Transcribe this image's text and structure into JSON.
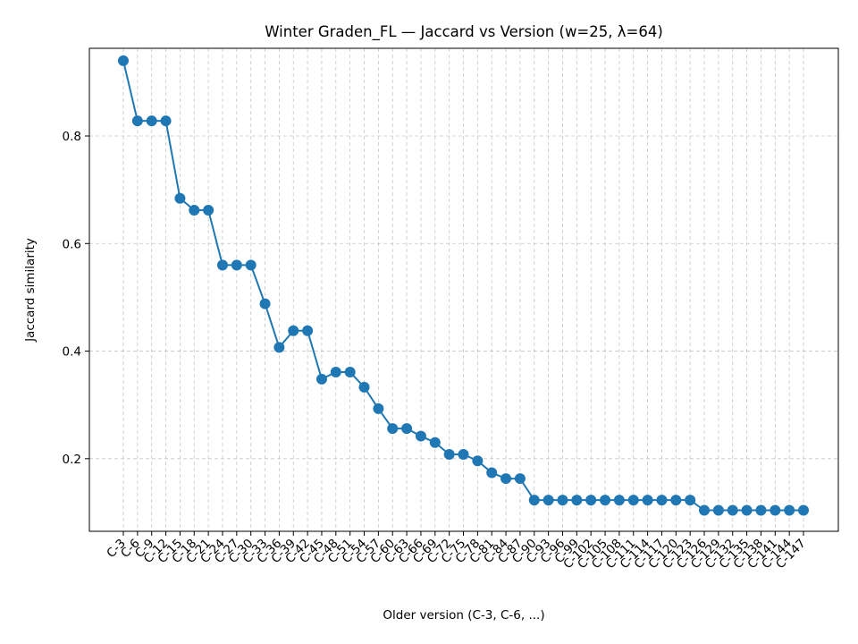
{
  "chart_data": {
    "type": "line",
    "title": "Winter Graden_FL — Jaccard vs Version (w=25, λ=64)",
    "xlabel": "Older version (C-3, C-6, ...)",
    "ylabel": "Jaccard similarity",
    "ylim": [
      0.065,
      0.963
    ],
    "yticks": [
      "0.2",
      "0.4",
      "0.6",
      "0.8"
    ],
    "grid": true,
    "categories": [
      "C-3",
      "C-6",
      "C-9",
      "C-12",
      "C-15",
      "C-18",
      "C-21",
      "C-24",
      "C-27",
      "C-30",
      "C-33",
      "C-36",
      "C-39",
      "C-42",
      "C-45",
      "C-48",
      "C-51",
      "C-54",
      "C-57",
      "C-60",
      "C-63",
      "C-66",
      "C-69",
      "C-72",
      "C-75",
      "C-78",
      "C-81",
      "C-84",
      "C-87",
      "C-90",
      "C-93",
      "C-96",
      "C-99",
      "C-102",
      "C-105",
      "C-108",
      "C-111",
      "C-114",
      "C-117",
      "C-120",
      "C-123",
      "C-126",
      "C-129",
      "C-132",
      "C-135",
      "C-138",
      "C-141",
      "C-144",
      "C-147"
    ],
    "series": [
      {
        "color": "#1f77b4",
        "values": [
          0.94,
          0.828,
          0.828,
          0.828,
          0.684,
          0.662,
          0.662,
          0.56,
          0.56,
          0.56,
          0.488,
          0.407,
          0.438,
          0.438,
          0.348,
          0.361,
          0.361,
          0.333,
          0.293,
          0.256,
          0.256,
          0.242,
          0.23,
          0.208,
          0.208,
          0.196,
          0.174,
          0.163,
          0.163,
          0.123,
          0.123,
          0.123,
          0.123,
          0.123,
          0.123,
          0.123,
          0.123,
          0.123,
          0.123,
          0.123,
          0.123,
          0.104,
          0.104,
          0.104,
          0.104,
          0.104,
          0.104,
          0.104,
          0.104
        ]
      }
    ]
  }
}
